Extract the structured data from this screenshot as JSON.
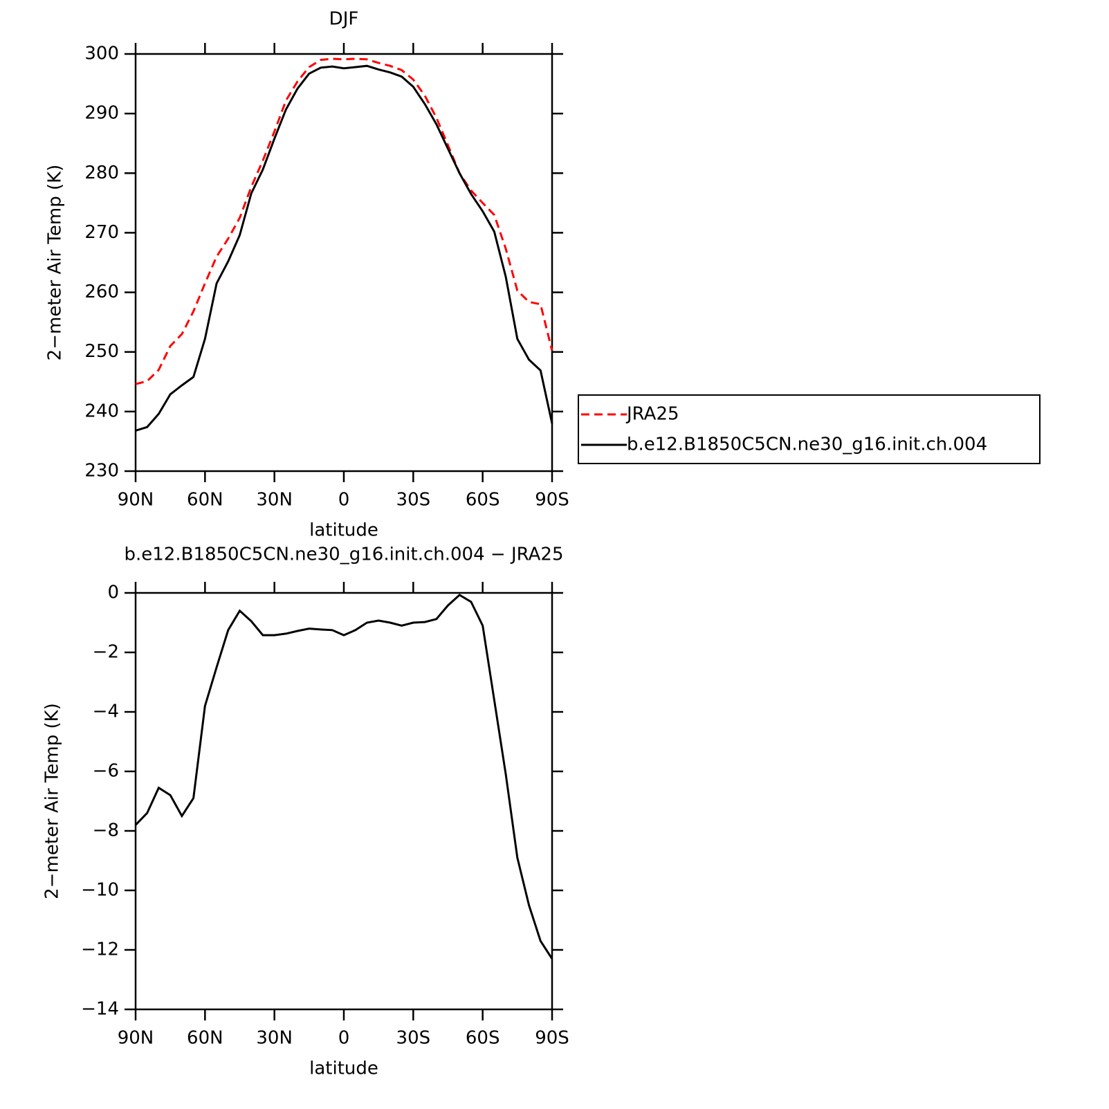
{
  "chart_data": [
    {
      "type": "line",
      "title": "DJF",
      "x_label": "latitude",
      "y_label": "2−meter Air Temp (K)",
      "x": [
        90,
        85,
        80,
        75,
        70,
        65,
        60,
        55,
        50,
        45,
        40,
        35,
        30,
        25,
        20,
        15,
        10,
        5,
        0,
        -5,
        -10,
        -15,
        -20,
        -25,
        -30,
        -35,
        -40,
        -45,
        -50,
        -55,
        -60,
        -65,
        -70,
        -75,
        -80,
        -85,
        -90
      ],
      "series": [
        {
          "name": "JRA25",
          "color": "#ff0000",
          "style": "dashed",
          "values": [
            244.6,
            245.1,
            247,
            251,
            253,
            256.8,
            261.5,
            266,
            269,
            272.5,
            277.7,
            282.1,
            287,
            292.2,
            295.4,
            297.8,
            299,
            299.2,
            299.1,
            299.2,
            299.1,
            298.5,
            298,
            297.3,
            295.7,
            293,
            289.3,
            284.7,
            280,
            277.1,
            275,
            273,
            267.3,
            260.3,
            258.4,
            258,
            250.2
          ]
        },
        {
          "name": "b.e12.B1850C5CN.ne30_g16.init.ch.004",
          "color": "#000000",
          "style": "solid",
          "values": [
            236.8,
            237.4,
            239.6,
            242.9,
            244.4,
            245.8,
            252.2,
            261.5,
            265.2,
            269.6,
            276.6,
            280.6,
            285.8,
            290.7,
            294.2,
            296.7,
            297.7,
            297.9,
            297.6,
            297.8,
            298,
            297.4,
            296.9,
            296.2,
            294.5,
            291.6,
            288.2,
            284.1,
            280,
            276.5,
            273.6,
            270.2,
            262.6,
            252.2,
            248.7,
            246.9,
            238
          ]
        }
      ],
      "xlim": [
        90,
        -90
      ],
      "xticks": [
        {
          "value": 90,
          "label": "90N"
        },
        {
          "value": 60,
          "label": "60N"
        },
        {
          "value": 30,
          "label": "30N"
        },
        0,
        {
          "value": -30,
          "label": "30S"
        },
        {
          "value": -60,
          "label": "60S"
        },
        {
          "value": -90,
          "label": "90S"
        }
      ],
      "ylim": [
        230,
        300
      ],
      "yticks": [
        230,
        240,
        250,
        260,
        270,
        280,
        290,
        300
      ],
      "legend": "right"
    },
    {
      "type": "line",
      "title": "b.e12.B1850C5CN.ne30_g16.init.ch.004 − JRA25",
      "x_label": "latitude",
      "y_label": "2−meter Air Temp (K)",
      "x": [
        90,
        85,
        80,
        75,
        70,
        65,
        60,
        55,
        50,
        45,
        40,
        35,
        30,
        25,
        20,
        15,
        10,
        5,
        0,
        -5,
        -10,
        -15,
        -20,
        -25,
        -30,
        -35,
        -40,
        -45,
        -50,
        -55,
        -60,
        -65,
        -70,
        -75,
        -80,
        -85,
        -90
      ],
      "series": [
        {
          "color": "#000000",
          "style": "solid",
          "values": [
            -7.8,
            -7.4,
            -6.55,
            -6.8,
            -7.5,
            -6.9,
            -3.8,
            -2.5,
            -1.25,
            -0.6,
            -0.95,
            -1.42,
            -1.42,
            -1.37,
            -1.28,
            -1.2,
            -1.23,
            -1.25,
            -1.42,
            -1.25,
            -1.0,
            -0.93,
            -1.0,
            -1.1,
            -1.0,
            -0.98,
            -0.88,
            -0.42,
            -0.07,
            -0.3,
            -1.1,
            -3.6,
            -6.1,
            -8.9,
            -10.5,
            -11.7,
            -12.3
          ]
        }
      ],
      "xlim": [
        90,
        -90
      ],
      "xticks": [
        {
          "value": 90,
          "label": "90N"
        },
        {
          "value": 60,
          "label": "60N"
        },
        {
          "value": 30,
          "label": "30N"
        },
        0,
        {
          "value": -30,
          "label": "30S"
        },
        {
          "value": -60,
          "label": "60S"
        },
        {
          "value": -90,
          "label": "90S"
        }
      ],
      "ylim": [
        -14,
        0
      ],
      "yticks": [
        {
          "value": -14,
          "label": "−14"
        },
        {
          "value": -12,
          "label": "−12"
        },
        {
          "value": -10,
          "label": "−10"
        },
        {
          "value": -8,
          "label": "−8"
        },
        {
          "value": -6,
          "label": "−6"
        },
        {
          "value": -4,
          "label": "−4"
        },
        {
          "value": -2,
          "label": "−2"
        },
        0
      ]
    }
  ]
}
